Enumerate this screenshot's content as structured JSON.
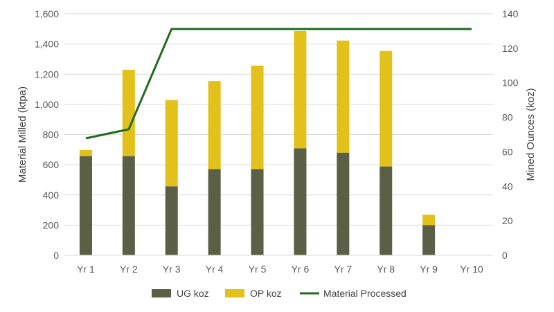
{
  "chart_data": {
    "type": "bar",
    "stacked": true,
    "categories": [
      "Yr 1",
      "Yr 2",
      "Yr 3",
      "Yr 4",
      "Yr 5",
      "Yr 6",
      "Yr 7",
      "Yr 8",
      "Yr 9",
      "Yr 10"
    ],
    "series": [
      {
        "name": "UG koz",
        "axis": "right",
        "color": "#5a5f45",
        "values": [
          57.5,
          57.5,
          40,
          50,
          50,
          62,
          59.5,
          51.5,
          17.5,
          0
        ]
      },
      {
        "name": "OP koz",
        "axis": "right",
        "color": "#e2c11a",
        "values": [
          3.5,
          50,
          50,
          51,
          60,
          68,
          65,
          67,
          6,
          0
        ]
      },
      {
        "name": "Material Processed",
        "type": "line",
        "axis": "left",
        "color": "#1e6b1e",
        "values": [
          775,
          835,
          1500,
          1500,
          1500,
          1500,
          1500,
          1500,
          1500,
          1500
        ]
      }
    ],
    "ylabel": "Material Milled (ktpa)",
    "y2label": "Mined Ounces (koz)",
    "ylim": [
      0,
      1600
    ],
    "y2lim": [
      0,
      140
    ],
    "yticks": [
      "0",
      "200",
      "400",
      "600",
      "800",
      "1,000",
      "1,200",
      "1,400",
      "1,600"
    ],
    "y2ticks": [
      "0",
      "20",
      "40",
      "60",
      "80",
      "100",
      "120",
      "140"
    ],
    "legend_position": "bottom",
    "grid": true
  }
}
